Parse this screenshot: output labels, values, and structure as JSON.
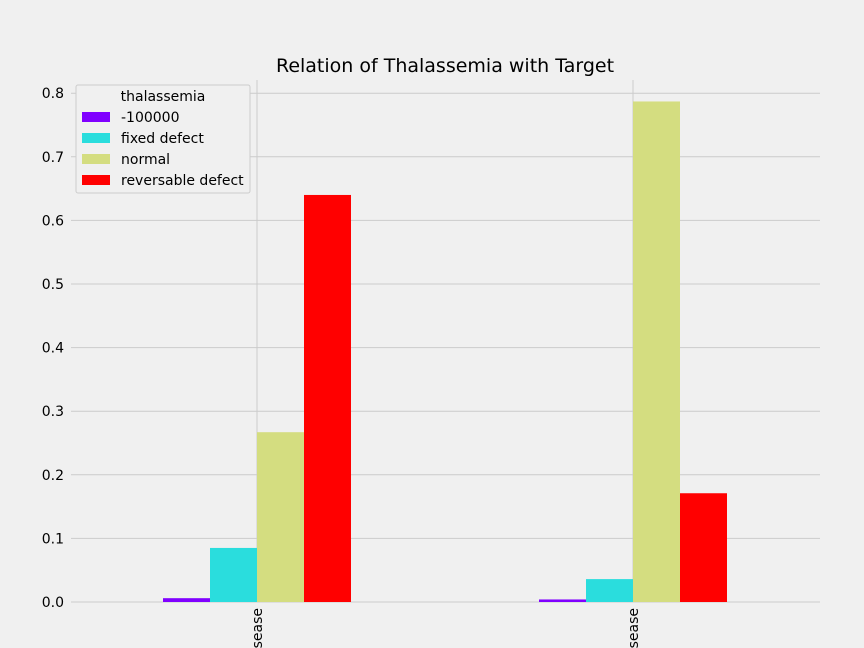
{
  "chart_data": {
    "type": "bar",
    "title": "Relation of Thalassemia with Target",
    "categories": [
      "sease",
      "sease"
    ],
    "legend_title": "thalassemia",
    "legend_position": "top-left",
    "grid": true,
    "ylim": [
      0,
      0.82
    ],
    "yticks": [
      "0.0",
      "0.1",
      "0.2",
      "0.3",
      "0.4",
      "0.5",
      "0.6",
      "0.7",
      "0.8"
    ],
    "series": [
      {
        "name": "-100000",
        "color": "#8000ff",
        "values": [
          0.006,
          0.004
        ]
      },
      {
        "name": "fixed defect",
        "color": "#2adddd",
        "values": [
          0.085,
          0.036
        ]
      },
      {
        "name": "normal",
        "color": "#d4dd80",
        "values": [
          0.267,
          0.787
        ]
      },
      {
        "name": "reversable defect",
        "color": "#ff0000",
        "values": [
          0.64,
          0.171
        ]
      }
    ]
  }
}
